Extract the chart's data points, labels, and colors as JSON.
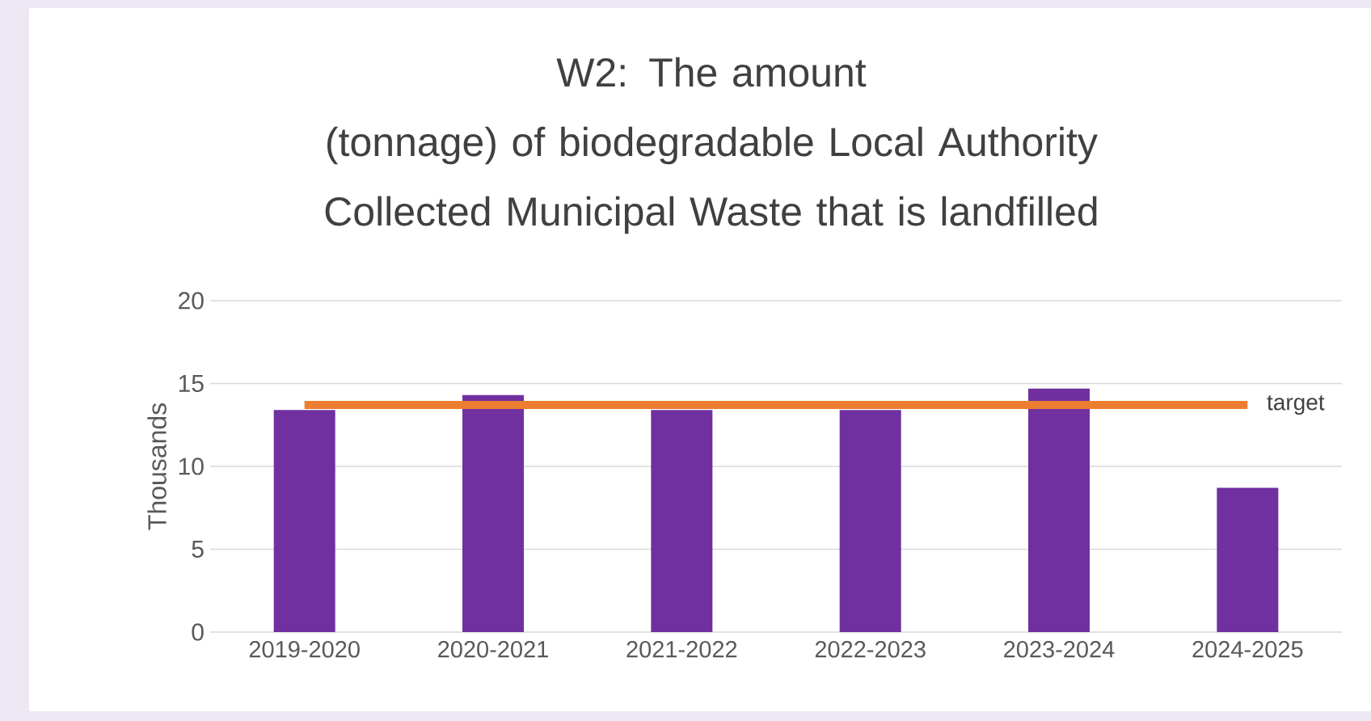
{
  "chart_data": {
    "type": "bar",
    "title": "W2: The amount (tonnage) of biodegradable Local Authority Collected Municipal Waste that is landfilled",
    "ylabel": "Thousands",
    "categories": [
      "2019-2020",
      "2020-2021",
      "2021-2022",
      "2022-2023",
      "2023-2024",
      "2024-2025"
    ],
    "values": [
      13.4,
      14.3,
      13.4,
      13.4,
      14.7,
      8.7
    ],
    "color": "#7030a0",
    "ylim": [
      0,
      20
    ],
    "yticks": [
      0,
      5,
      10,
      15,
      20
    ],
    "grid": "y",
    "ref_lines": [
      {
        "axis": "y",
        "value": 13.7,
        "label": "target",
        "color": "#ed7d31"
      }
    ]
  }
}
